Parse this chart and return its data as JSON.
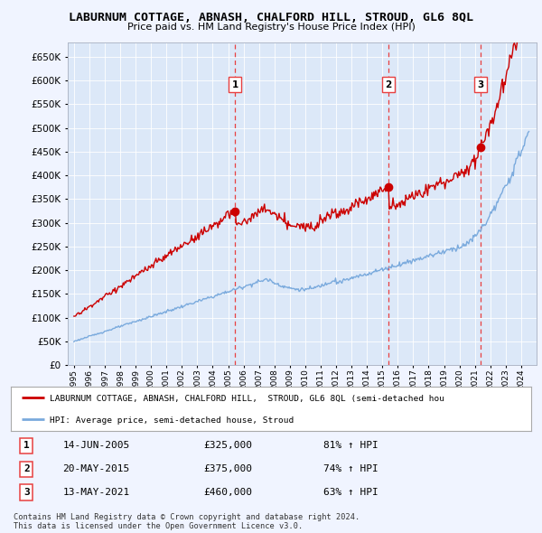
{
  "title": "LABURNUM COTTAGE, ABNASH, CHALFORD HILL, STROUD, GL6 8QL",
  "subtitle": "Price paid vs. HM Land Registry's House Price Index (HPI)",
  "background_color": "#dce8f8",
  "plot_bg_color": "#dce8f8",
  "outer_bg_color": "#f0f4ff",
  "ylim": [
    0,
    680000
  ],
  "yticks": [
    0,
    50000,
    100000,
    150000,
    200000,
    250000,
    300000,
    350000,
    400000,
    450000,
    500000,
    550000,
    600000,
    650000
  ],
  "sale_dates": [
    2005.45,
    2015.38,
    2021.36
  ],
  "sale_prices": [
    325000,
    375000,
    460000
  ],
  "sale_labels": [
    "1",
    "2",
    "3"
  ],
  "vline_color": "#e84040",
  "red_line_color": "#cc0000",
  "blue_line_color": "#7aaadd",
  "legend_red_label": "LABURNUM COTTAGE, ABNASH, CHALFORD HILL,  STROUD, GL6 8QL (semi-detached hou",
  "legend_blue_label": "HPI: Average price, semi-detached house, Stroud",
  "table_rows": [
    [
      "1",
      "14-JUN-2005",
      "£325,000",
      "81% ↑ HPI"
    ],
    [
      "2",
      "20-MAY-2015",
      "£375,000",
      "74% ↑ HPI"
    ],
    [
      "3",
      "13-MAY-2021",
      "£460,000",
      "63% ↑ HPI"
    ]
  ],
  "footer": "Contains HM Land Registry data © Crown copyright and database right 2024.\nThis data is licensed under the Open Government Licence v3.0."
}
